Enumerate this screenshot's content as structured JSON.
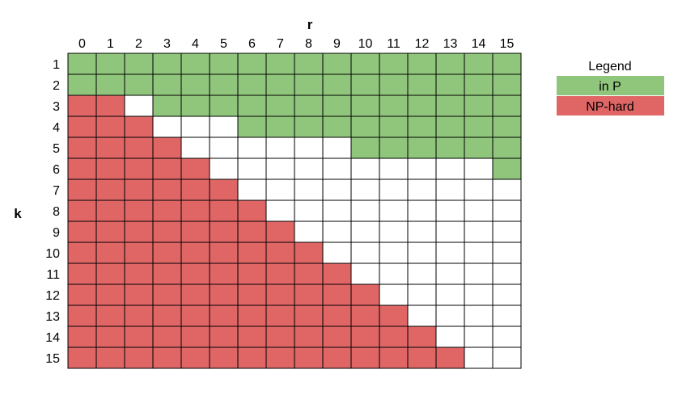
{
  "chart_data": {
    "type": "heatmap",
    "title": "",
    "xlabel": "r",
    "ylabel": "k",
    "x_ticks": [
      "0",
      "1",
      "2",
      "3",
      "4",
      "5",
      "6",
      "7",
      "8",
      "9",
      "10",
      "11",
      "12",
      "13",
      "14",
      "15"
    ],
    "y_ticks": [
      "1",
      "2",
      "3",
      "4",
      "5",
      "6",
      "7",
      "8",
      "9",
      "10",
      "11",
      "12",
      "13",
      "14",
      "15"
    ],
    "encoding": {
      "P": "in P",
      "N": "NP-hard",
      "U": "not shown (blank)"
    },
    "rows": [
      {
        "k": "1",
        "cells": "PPPPPPPPPPPPPPPP"
      },
      {
        "k": "2",
        "cells": "PPPPPPPPPPPPPPPP"
      },
      {
        "k": "3",
        "cells": "NNUPPPPPPPPPPPPP"
      },
      {
        "k": "4",
        "cells": "NNNUUUPPPPPPPPPP"
      },
      {
        "k": "5",
        "cells": "NNNNUUUUUUPPPPPP"
      },
      {
        "k": "6",
        "cells": "NNNNNUUUUUUUUUUP"
      },
      {
        "k": "7",
        "cells": "NNNNNNUUUUUUUUUU"
      },
      {
        "k": "8",
        "cells": "NNNNNNNUUUUUUUUU"
      },
      {
        "k": "9",
        "cells": "NNNNNNNNUUUUUUUU"
      },
      {
        "k": "10",
        "cells": "NNNNNNNNNUUUUUUU"
      },
      {
        "k": "11",
        "cells": "NNNNNNNNNNUUUUUU"
      },
      {
        "k": "12",
        "cells": "NNNNNNNNNNNUUUUU"
      },
      {
        "k": "13",
        "cells": "NNNNNNNNNNNNUUUU"
      },
      {
        "k": "14",
        "cells": "NNNNNNNNNNNNNUUU"
      },
      {
        "k": "15",
        "cells": "NNNNNNNNNNNNNNUU"
      }
    ],
    "legend": {
      "title": "Legend",
      "position": "right",
      "entries": [
        {
          "label": "in P",
          "color": "#90c67c"
        },
        {
          "label": "NP-hard",
          "color": "#e06666"
        }
      ]
    },
    "colors": {
      "P": "#90c67c",
      "N": "#e06666",
      "U": "#ffffff",
      "grid": "#000000"
    }
  }
}
